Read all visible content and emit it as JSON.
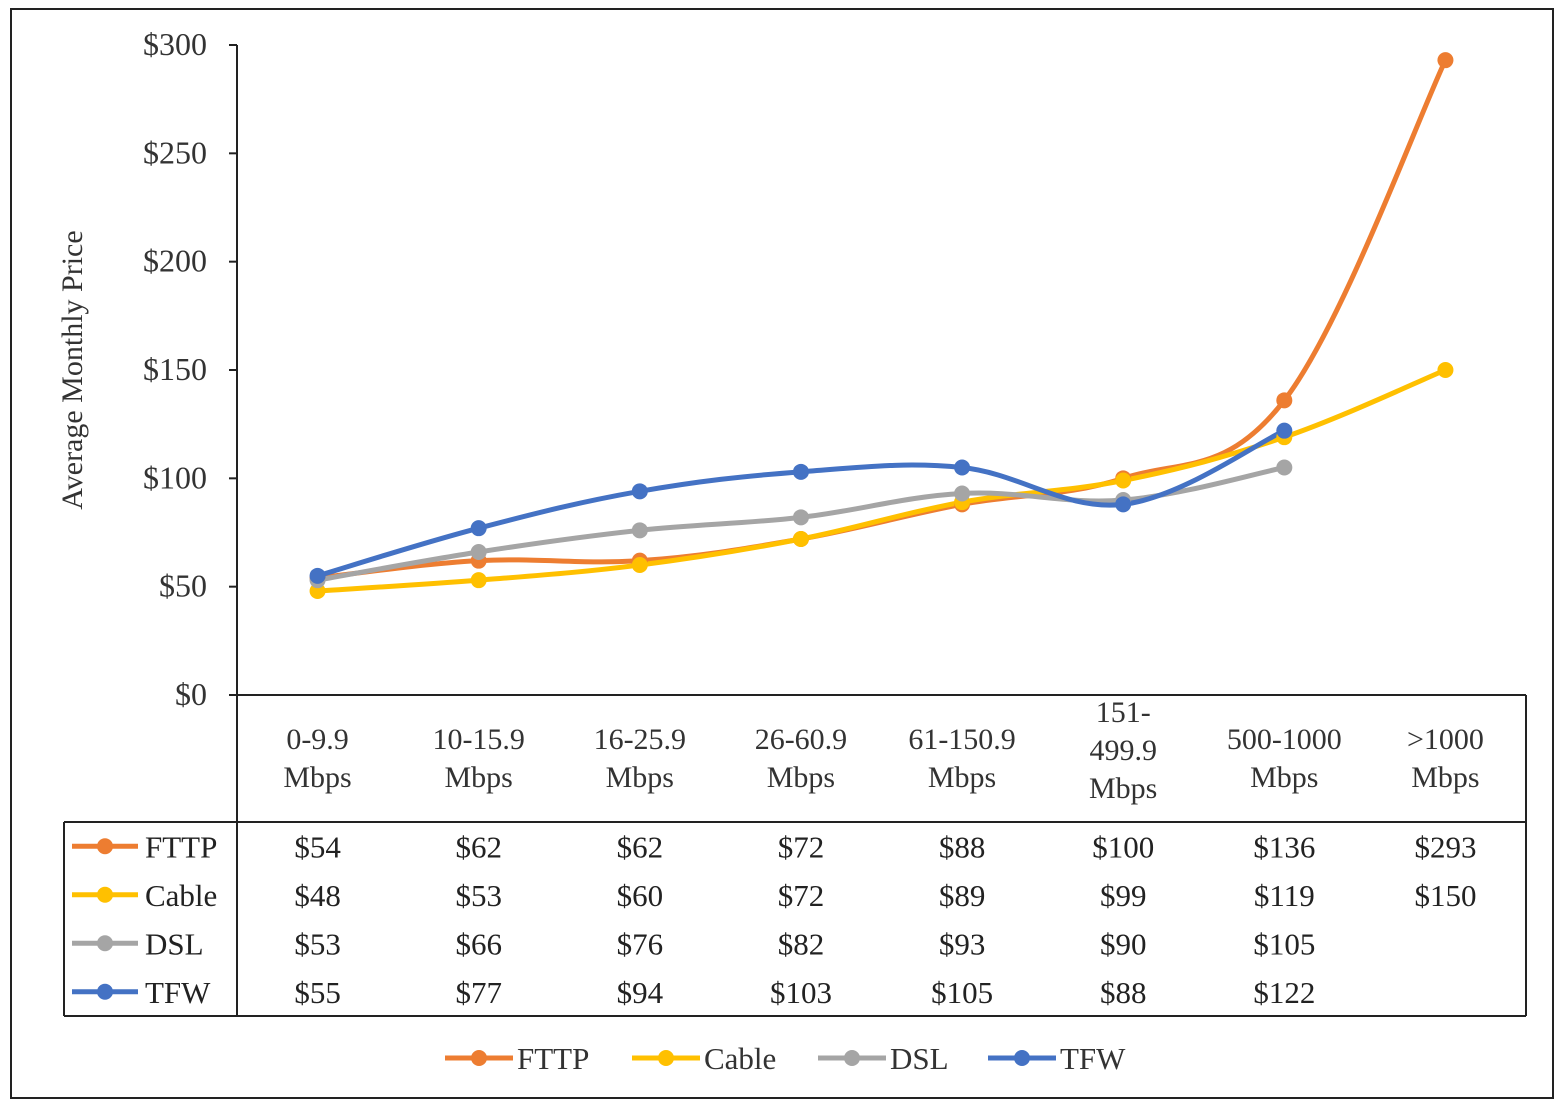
{
  "chart_data": {
    "type": "line",
    "title": "",
    "xlabel": "",
    "ylabel": "Average Monthly Price",
    "ylim": [
      0,
      300
    ],
    "yticks": [
      0,
      50,
      100,
      150,
      200,
      250,
      300
    ],
    "ytick_labels": [
      "$0",
      "$50",
      "$100",
      "$150",
      "$200",
      "$250",
      "$300"
    ],
    "categories": [
      [
        "0-9.9",
        "Mbps"
      ],
      [
        "10-15.9",
        "Mbps"
      ],
      [
        "16-25.9",
        "Mbps"
      ],
      [
        "26-60.9",
        "Mbps"
      ],
      [
        "61-150.9",
        "Mbps"
      ],
      [
        "151-",
        "499.9",
        "Mbps"
      ],
      [
        "500-1000",
        "Mbps"
      ],
      [
        ">1000",
        "Mbps"
      ]
    ],
    "series": [
      {
        "name": "FTTP",
        "color": "#ED7D31",
        "values": [
          54,
          62,
          62,
          72,
          88,
          100,
          136,
          293
        ],
        "labels": [
          "$54",
          "$62",
          "$62",
          "$72",
          "$88",
          "$100",
          "$136",
          "$293"
        ]
      },
      {
        "name": "Cable",
        "color": "#FFC000",
        "values": [
          48,
          53,
          60,
          72,
          89,
          99,
          119,
          150
        ],
        "labels": [
          "$48",
          "$53",
          "$60",
          "$72",
          "$89",
          "$99",
          "$119",
          "$150"
        ]
      },
      {
        "name": "DSL",
        "color": "#A5A5A5",
        "values": [
          53,
          66,
          76,
          82,
          93,
          90,
          105,
          null
        ],
        "labels": [
          "$53",
          "$66",
          "$76",
          "$82",
          "$93",
          "$90",
          "$105",
          ""
        ]
      },
      {
        "name": "TFW",
        "color": "#4472C4",
        "values": [
          55,
          77,
          94,
          103,
          105,
          88,
          122,
          null
        ],
        "labels": [
          "$55",
          "$77",
          "$94",
          "$103",
          "$105",
          "$88",
          "$122",
          ""
        ]
      }
    ],
    "legend": "bottom",
    "data_table": true,
    "grid": false
  }
}
